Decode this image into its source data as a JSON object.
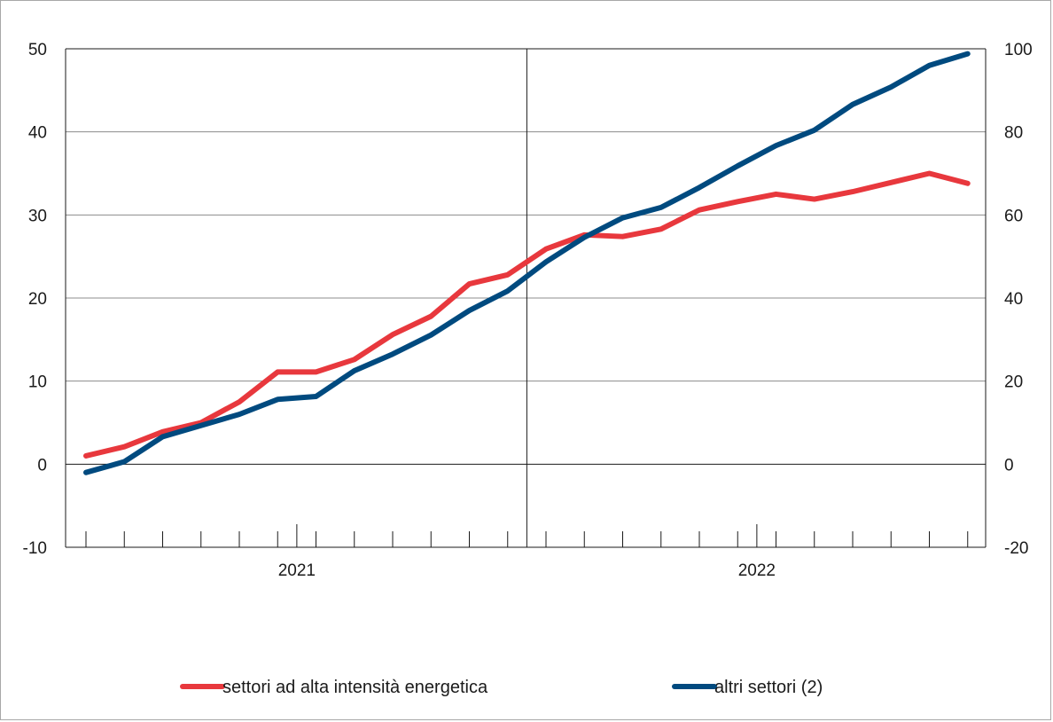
{
  "chart_data": {
    "type": "line",
    "x": [
      "2021-01",
      "2021-02",
      "2021-03",
      "2021-04",
      "2021-05",
      "2021-06",
      "2021-07",
      "2021-08",
      "2021-09",
      "2021-10",
      "2021-11",
      "2021-12",
      "2022-01",
      "2022-02",
      "2022-03",
      "2022-04",
      "2022-05",
      "2022-06",
      "2022-07",
      "2022-08",
      "2022-09",
      "2022-10",
      "2022-11",
      "2022-12"
    ],
    "year_labels": [
      "2021",
      "2022"
    ],
    "left_axis": {
      "ylim": [
        -10,
        50
      ],
      "ticks": [
        -10,
        0,
        10,
        20,
        30,
        40,
        50
      ]
    },
    "right_axis": {
      "ylim": [
        -20,
        100
      ],
      "ticks": [
        -20,
        0,
        20,
        40,
        60,
        80,
        100
      ]
    },
    "series": [
      {
        "name": "settori ad alta intensità energetica",
        "color": "#e8383d",
        "axis": "left",
        "values": [
          1.0,
          2.1,
          3.9,
          5.0,
          7.5,
          11.1,
          11.1,
          12.6,
          15.6,
          17.8,
          21.7,
          22.8,
          25.9,
          27.6,
          27.4,
          28.3,
          30.6,
          31.6,
          32.5,
          31.9,
          32.8,
          33.9,
          35.0,
          33.8
        ]
      },
      {
        "name": "altri settori (2)",
        "color": "#004a7f",
        "axis": "right",
        "values": [
          -2.0,
          0.6,
          6.6,
          9.3,
          12.0,
          15.6,
          16.3,
          22.5,
          26.5,
          31.1,
          37.0,
          41.7,
          48.7,
          54.6,
          59.3,
          61.8,
          66.6,
          71.8,
          76.7,
          80.4,
          86.6,
          90.8,
          96.0,
          98.8
        ]
      }
    ],
    "grid": true,
    "legend_position": "bottom"
  }
}
